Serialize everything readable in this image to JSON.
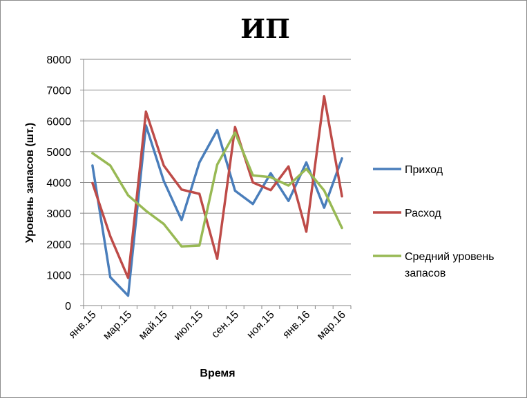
{
  "chart_data": {
    "type": "line",
    "title": "ИП",
    "xlabel": "Время",
    "ylabel": "Уровень запасов (шт.)",
    "ylim": [
      0,
      8000
    ],
    "yticks": [
      0,
      1000,
      2000,
      3000,
      4000,
      5000,
      6000,
      7000,
      8000
    ],
    "xtick_labels": [
      "янв.15",
      "мар.15",
      "май.15",
      "июл.15",
      "сен.15",
      "ноя.15",
      "янв.16",
      "мар.16"
    ],
    "x_count": 15,
    "grid": true,
    "legend_position": "right",
    "series": [
      {
        "name": "Приход",
        "color": "#4a7ebb",
        "values": [
          4550,
          920,
          320,
          5850,
          4050,
          2780,
          4650,
          5700,
          3730,
          3300,
          4300,
          3400,
          4650,
          3180,
          4780
        ]
      },
      {
        "name": "Расход",
        "color": "#be4b48",
        "values": [
          3980,
          2250,
          900,
          6300,
          4550,
          3770,
          3630,
          1520,
          5800,
          4000,
          3750,
          4520,
          2400,
          6800,
          3550
        ]
      },
      {
        "name": "Средний уровень запасов",
        "legend_lines": [
          "Средний уровень",
          "запасов"
        ],
        "color": "#98b954",
        "values": [
          4950,
          4550,
          3580,
          3080,
          2650,
          1920,
          1950,
          4580,
          5620,
          4230,
          4170,
          3900,
          4440,
          3740,
          2520
        ]
      }
    ]
  }
}
